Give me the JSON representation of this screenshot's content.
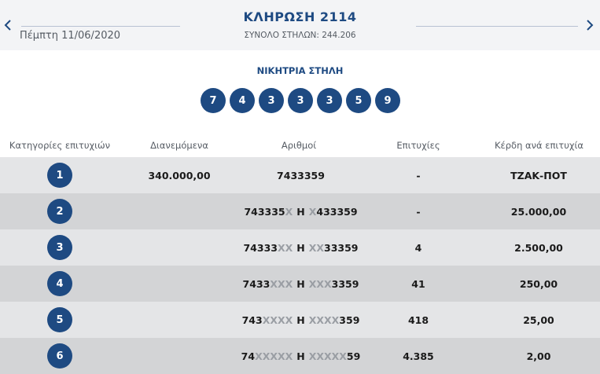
{
  "header": {
    "title": "ΚΛΗΡΩΣΗ 2114",
    "date": "Πέμπτη 11/06/2020",
    "total_columns": "ΣΥΝΟΛΟ ΣΤΗΛΩΝ: 244.206",
    "prev_icon": "chevron-left-icon",
    "next_icon": "chevron-right-icon"
  },
  "winning": {
    "label": "ΝΙΚΗΤΡΙΑ ΣΤΗΛΗ",
    "numbers": [
      "7",
      "4",
      "3",
      "3",
      "3",
      "5",
      "9"
    ]
  },
  "table": {
    "headers": {
      "category": "Κατηγορίες επιτυχιών",
      "distributed": "Διανεμόμενα",
      "numbers": "Αριθμοί",
      "winners": "Επιτυχίες",
      "prize": "Κέρδη ανά επιτυχία"
    },
    "rows": [
      {
        "category": "1",
        "distributed": "340.000,00",
        "num_a": [
          "7433359",
          ""
        ],
        "or": "",
        "num_b": [
          "",
          ""
        ],
        "winners": "-",
        "prize": "ΤΖΑΚ-ΠΟΤ"
      },
      {
        "category": "2",
        "distributed": "",
        "num_a": [
          "743335",
          "X"
        ],
        "or": "Η",
        "num_b": [
          "X",
          "433359"
        ],
        "winners": "-",
        "prize": "25.000,00"
      },
      {
        "category": "3",
        "distributed": "",
        "num_a": [
          "74333",
          "XX"
        ],
        "or": "Η",
        "num_b": [
          "XX",
          "33359"
        ],
        "winners": "4",
        "prize": "2.500,00"
      },
      {
        "category": "4",
        "distributed": "",
        "num_a": [
          "7433",
          "XXX"
        ],
        "or": "Η",
        "num_b": [
          "XXX",
          "3359"
        ],
        "winners": "41",
        "prize": "250,00"
      },
      {
        "category": "5",
        "distributed": "",
        "num_a": [
          "743",
          "XXXX"
        ],
        "or": "Η",
        "num_b": [
          "XXXX",
          "359"
        ],
        "winners": "418",
        "prize": "25,00"
      },
      {
        "category": "6",
        "distributed": "",
        "num_a": [
          "74",
          "XXXXX"
        ],
        "or": "Η",
        "num_b": [
          "XXXXX",
          "59"
        ],
        "winners": "4.385",
        "prize": "2,00"
      }
    ]
  },
  "colors": {
    "accent": "#1e4a82",
    "header_bg": "#f3f4f6",
    "row_light": "#e4e5e7",
    "row_dark": "#d3d4d6",
    "masked_digit": "#9a9ea4"
  }
}
